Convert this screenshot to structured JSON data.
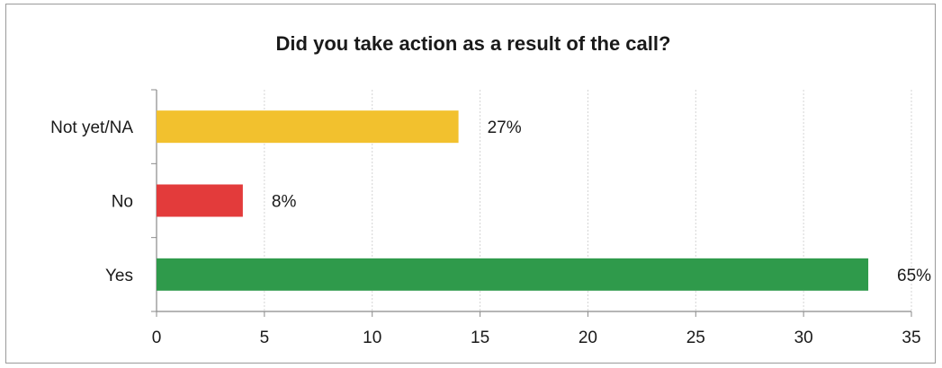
{
  "chart_data": {
    "type": "bar",
    "orientation": "horizontal",
    "title": "Did you take action as a result of the call?",
    "categories": [
      "Not yet/NA",
      "No",
      "Yes"
    ],
    "values": [
      14,
      4,
      33
    ],
    "data_labels": [
      "27%",
      "8%",
      "65%"
    ],
    "colors": [
      "#f2c12e",
      "#e33b3b",
      "#2f9a4b"
    ],
    "xlim": [
      0,
      35
    ],
    "xticks": [
      "0",
      "5",
      "10",
      "15",
      "20",
      "25",
      "30",
      "35"
    ],
    "xlabel": "",
    "ylabel": "",
    "grid": "vertical",
    "legend": "none"
  }
}
